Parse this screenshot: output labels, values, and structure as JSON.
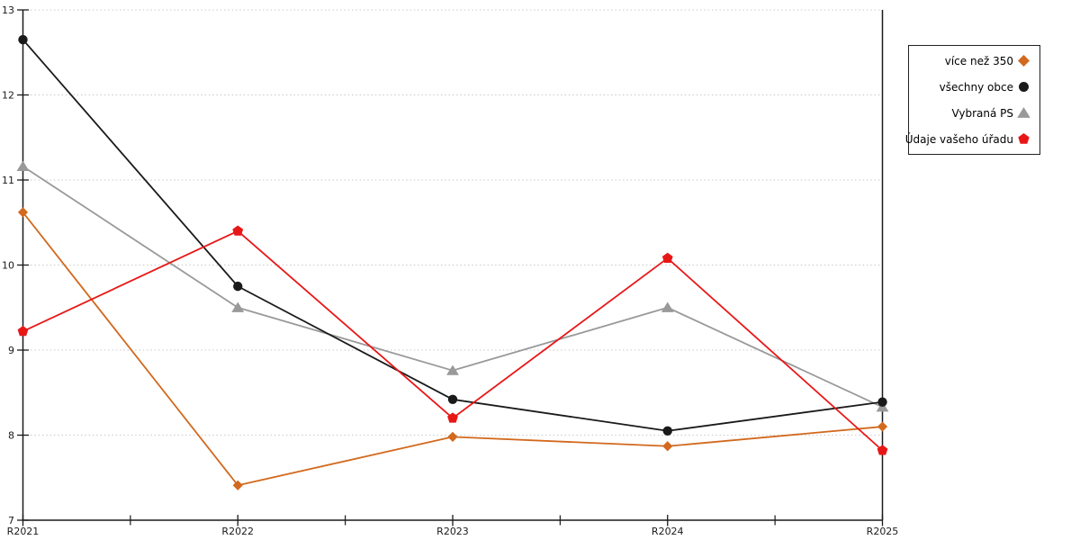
{
  "chart_data": {
    "type": "line",
    "title": "",
    "xlabel": "",
    "ylabel": "",
    "categories": [
      "R2021",
      "R2022",
      "R2023",
      "R2024",
      "R2025"
    ],
    "series": [
      {
        "name": "více než 350",
        "marker": "diamond",
        "color": "#D2691E",
        "values": [
          10.62,
          7.41,
          7.98,
          7.87,
          8.1
        ]
      },
      {
        "name": "všechny obce",
        "marker": "circle",
        "color": "#1A1A1A",
        "values": [
          12.65,
          9.75,
          8.42,
          8.05,
          8.39
        ]
      },
      {
        "name": "Vybraná PS",
        "marker": "triangle",
        "color": "#999999",
        "values": [
          11.16,
          9.5,
          8.76,
          9.5,
          8.33
        ]
      },
      {
        "name": "Údaje vašeho úřadu",
        "marker": "pentagon",
        "color": "#E81717",
        "values": [
          9.22,
          10.4,
          8.2,
          10.08,
          7.82
        ]
      }
    ],
    "ylim": [
      7,
      13
    ],
    "yticks": [
      7,
      8,
      9,
      10,
      11,
      12,
      13
    ],
    "grid": "horizontal-dotted",
    "grid_color": "#C9C9C9",
    "axis_color": "#1A1A1A",
    "legend_position": "outside-top-right"
  }
}
